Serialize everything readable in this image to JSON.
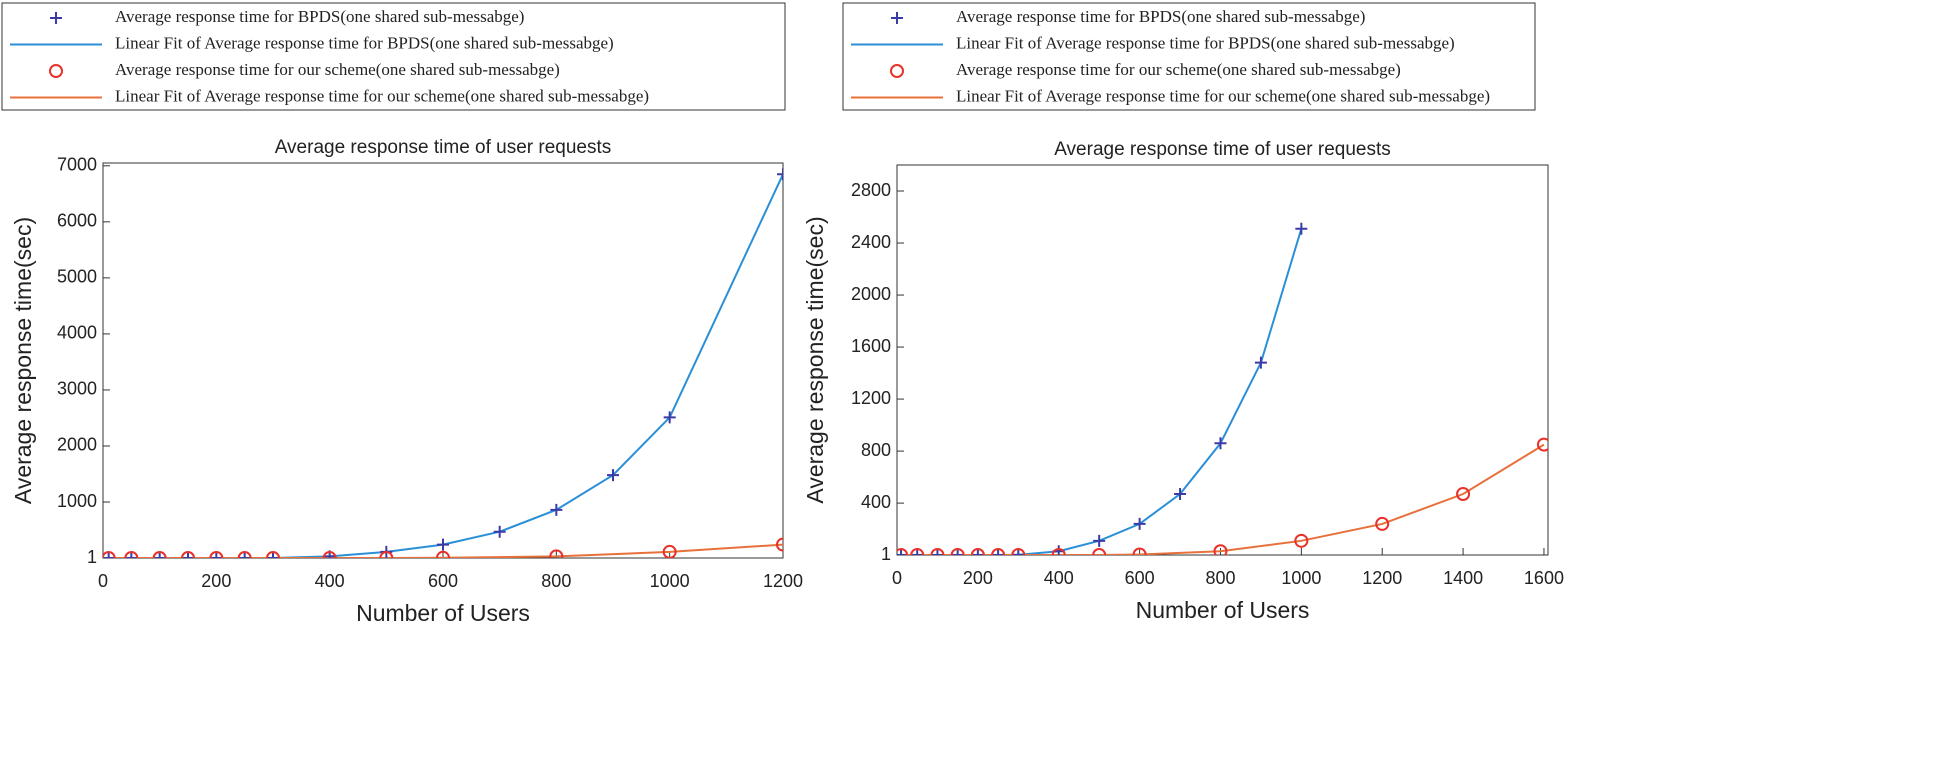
{
  "chart_data": [
    {
      "type": "line",
      "title": "Average response time of user requests",
      "x_label": "Number of Users",
      "y_label": "Average response time(sec)",
      "xlim": [
        0,
        1200
      ],
      "xticks": [
        0,
        200,
        400,
        600,
        800,
        1000,
        1200
      ],
      "ylim": [
        1,
        7050
      ],
      "yticks": [
        1,
        1000,
        2000,
        3000,
        4000,
        5000,
        6000,
        7000
      ],
      "series": [
        {
          "name": "Average response time for BPDS(one shared sub-messabge)",
          "color": "#3b3ba8",
          "marker": "plus",
          "x": [
            10,
            50,
            100,
            150,
            200,
            250,
            300,
            400,
            500,
            600,
            700,
            800,
            900,
            1000,
            1200
          ],
          "values": [
            1,
            1,
            1,
            1,
            1,
            1,
            2,
            30,
            110,
            240,
            470,
            860,
            1480,
            2510,
            6850
          ]
        },
        {
          "name": "Linear Fit of Average response time for BPDS(one shared sub-messabge)",
          "color": "#2a8fd6",
          "marker": "none",
          "x": [
            10,
            50,
            100,
            150,
            200,
            250,
            300,
            400,
            500,
            600,
            700,
            800,
            900,
            1000,
            1200
          ],
          "values": [
            1,
            1,
            1,
            1,
            1,
            1,
            2,
            30,
            110,
            240,
            470,
            860,
            1480,
            2510,
            6850
          ]
        },
        {
          "name": "Average response time for our scheme(one shared sub-messabge)",
          "color": "#e8312a",
          "marker": "circle",
          "x": [
            10,
            50,
            100,
            150,
            200,
            250,
            300,
            400,
            500,
            600,
            800,
            1000,
            1200
          ],
          "values": [
            1,
            1,
            1,
            1,
            1,
            1,
            1,
            1,
            1,
            5,
            30,
            110,
            240
          ]
        },
        {
          "name": "Linear Fit of Average response time for our scheme(one shared sub-messabge)",
          "color": "#e8703a",
          "marker": "none",
          "x": [
            10,
            50,
            100,
            150,
            200,
            250,
            300,
            400,
            500,
            600,
            800,
            1000,
            1200
          ],
          "values": [
            1,
            1,
            1,
            1,
            1,
            1,
            1,
            1,
            1,
            5,
            30,
            110,
            240
          ]
        }
      ]
    },
    {
      "type": "line",
      "title": "Average response time of user requests",
      "x_label": "Number of Users",
      "y_label": "Average response time(sec)",
      "xlim": [
        0,
        1610
      ],
      "xticks": [
        0,
        200,
        400,
        600,
        800,
        1000,
        1200,
        1400,
        1600
      ],
      "ylim": [
        1,
        3000
      ],
      "yticks": [
        1,
        400,
        800,
        1200,
        1600,
        2000,
        2400,
        2800
      ],
      "series": [
        {
          "name": "Average response time for BPDS(one shared sub-messabge)",
          "color": "#3b3ba8",
          "marker": "plus",
          "x": [
            10,
            50,
            100,
            150,
            200,
            250,
            300,
            400,
            500,
            600,
            700,
            800,
            900,
            1000
          ],
          "values": [
            1,
            1,
            1,
            1,
            1,
            1,
            2,
            30,
            110,
            240,
            470,
            860,
            1480,
            2510
          ]
        },
        {
          "name": "Linear Fit of Average response time for BPDS(one shared sub-messabge)",
          "color": "#2a8fd6",
          "marker": "none",
          "x": [
            10,
            50,
            100,
            150,
            200,
            250,
            300,
            400,
            500,
            600,
            700,
            800,
            900,
            1000
          ],
          "values": [
            1,
            1,
            1,
            1,
            1,
            1,
            2,
            30,
            110,
            240,
            470,
            860,
            1480,
            2510
          ]
        },
        {
          "name": "Average response time for our scheme(one shared sub-messabge)",
          "color": "#e8312a",
          "marker": "circle",
          "x": [
            10,
            50,
            100,
            150,
            200,
            250,
            300,
            400,
            500,
            600,
            800,
            1000,
            1200,
            1400,
            1600
          ],
          "values": [
            1,
            1,
            1,
            1,
            1,
            1,
            1,
            1,
            1,
            5,
            30,
            110,
            240,
            470,
            850
          ]
        },
        {
          "name": "Linear Fit of Average response time for our scheme(one shared sub-messabge)",
          "color": "#e8703a",
          "marker": "none",
          "x": [
            10,
            50,
            100,
            150,
            200,
            250,
            300,
            400,
            500,
            600,
            800,
            1000,
            1200,
            1400,
            1600
          ],
          "values": [
            1,
            1,
            1,
            1,
            1,
            1,
            1,
            1,
            1,
            5,
            30,
            110,
            240,
            470,
            850
          ]
        }
      ]
    }
  ]
}
